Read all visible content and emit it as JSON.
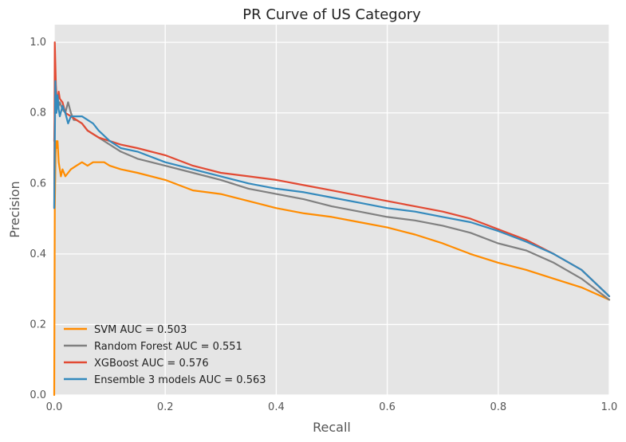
{
  "chart_data": {
    "type": "line",
    "title": "PR Curve of US Category",
    "xlabel": "Recall",
    "ylabel": "Precision",
    "xlim": [
      0.0,
      1.0
    ],
    "ylim": [
      0.0,
      1.05
    ],
    "xticks": [
      "0.0",
      "0.2",
      "0.4",
      "0.6",
      "0.8",
      "1.0"
    ],
    "yticks": [
      "0.0",
      "0.2",
      "0.4",
      "0.6",
      "0.8",
      "1.0"
    ],
    "grid": true,
    "legend_position": "bottom-left",
    "plot_background": "#e5e5e5",
    "series": [
      {
        "name": "SVM AUC = 0.503",
        "color": "#ff8c00",
        "x": [
          0.0,
          0.001,
          0.002,
          0.003,
          0.004,
          0.006,
          0.008,
          0.012,
          0.015,
          0.02,
          0.025,
          0.03,
          0.04,
          0.05,
          0.06,
          0.07,
          0.08,
          0.09,
          0.1,
          0.12,
          0.15,
          0.2,
          0.25,
          0.3,
          0.35,
          0.4,
          0.45,
          0.5,
          0.55,
          0.6,
          0.65,
          0.7,
          0.75,
          0.8,
          0.85,
          0.9,
          0.95,
          1.0
        ],
        "y": [
          0.0,
          0.53,
          0.64,
          0.72,
          0.7,
          0.72,
          0.66,
          0.62,
          0.64,
          0.62,
          0.63,
          0.64,
          0.65,
          0.66,
          0.65,
          0.66,
          0.66,
          0.66,
          0.65,
          0.64,
          0.63,
          0.61,
          0.58,
          0.57,
          0.55,
          0.53,
          0.515,
          0.505,
          0.49,
          0.475,
          0.455,
          0.43,
          0.4,
          0.375,
          0.355,
          0.33,
          0.305,
          0.27
        ]
      },
      {
        "name": "Random Forest AUC = 0.551",
        "color": "#808080",
        "x": [
          0.0,
          0.002,
          0.004,
          0.006,
          0.008,
          0.01,
          0.015,
          0.02,
          0.025,
          0.03,
          0.035,
          0.04,
          0.05,
          0.06,
          0.07,
          0.08,
          0.1,
          0.12,
          0.15,
          0.2,
          0.25,
          0.3,
          0.35,
          0.4,
          0.45,
          0.5,
          0.55,
          0.6,
          0.65,
          0.7,
          0.75,
          0.8,
          0.85,
          0.9,
          0.95,
          1.0
        ],
        "y": [
          0.72,
          0.86,
          0.8,
          0.85,
          0.82,
          0.83,
          0.81,
          0.8,
          0.83,
          0.8,
          0.78,
          0.78,
          0.77,
          0.75,
          0.74,
          0.73,
          0.71,
          0.69,
          0.67,
          0.65,
          0.63,
          0.61,
          0.585,
          0.57,
          0.555,
          0.535,
          0.52,
          0.505,
          0.495,
          0.48,
          0.46,
          0.43,
          0.41,
          0.375,
          0.33,
          0.27
        ]
      },
      {
        "name": "XGBoost AUC = 0.576",
        "color": "#e24a33",
        "x": [
          0.0,
          0.001,
          0.002,
          0.003,
          0.005,
          0.008,
          0.01,
          0.015,
          0.02,
          0.03,
          0.04,
          0.05,
          0.06,
          0.08,
          0.1,
          0.12,
          0.15,
          0.2,
          0.25,
          0.3,
          0.35,
          0.4,
          0.45,
          0.5,
          0.55,
          0.6,
          0.65,
          0.7,
          0.75,
          0.8,
          0.85,
          0.9,
          0.95,
          1.0
        ],
        "y": [
          0.53,
          1.0,
          0.94,
          0.88,
          0.82,
          0.86,
          0.84,
          0.83,
          0.8,
          0.79,
          0.78,
          0.77,
          0.75,
          0.73,
          0.72,
          0.71,
          0.7,
          0.68,
          0.65,
          0.63,
          0.62,
          0.61,
          0.595,
          0.58,
          0.565,
          0.55,
          0.535,
          0.52,
          0.5,
          0.47,
          0.44,
          0.4,
          0.355,
          0.28
        ]
      },
      {
        "name": "Ensemble 3 models AUC = 0.563",
        "color": "#348abd",
        "x": [
          0.0,
          0.002,
          0.004,
          0.006,
          0.008,
          0.01,
          0.015,
          0.02,
          0.025,
          0.03,
          0.04,
          0.05,
          0.06,
          0.07,
          0.08,
          0.1,
          0.12,
          0.15,
          0.2,
          0.25,
          0.3,
          0.35,
          0.4,
          0.45,
          0.5,
          0.55,
          0.6,
          0.65,
          0.7,
          0.75,
          0.8,
          0.85,
          0.9,
          0.95,
          1.0
        ],
        "y": [
          0.53,
          0.89,
          0.8,
          0.85,
          0.81,
          0.79,
          0.82,
          0.8,
          0.77,
          0.79,
          0.79,
          0.79,
          0.78,
          0.77,
          0.75,
          0.72,
          0.7,
          0.69,
          0.66,
          0.64,
          0.62,
          0.6,
          0.585,
          0.575,
          0.56,
          0.545,
          0.53,
          0.52,
          0.505,
          0.49,
          0.465,
          0.435,
          0.4,
          0.355,
          0.28
        ]
      }
    ]
  }
}
